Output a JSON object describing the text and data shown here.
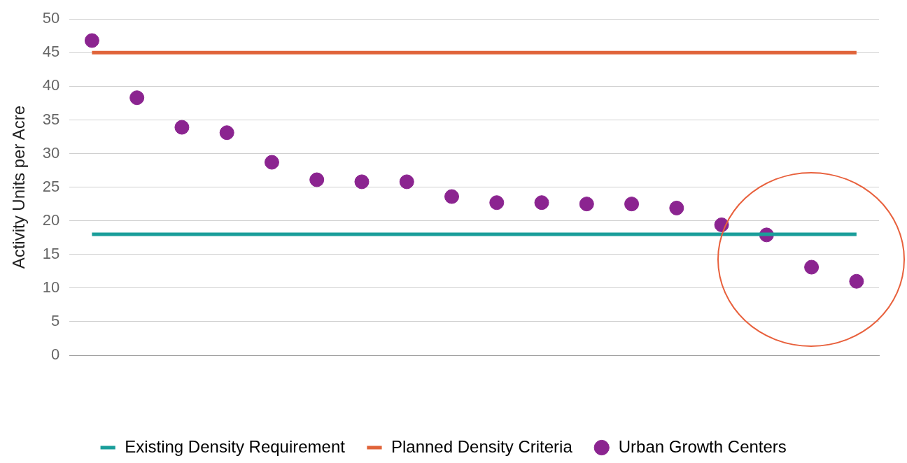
{
  "chart_data": {
    "type": "scatter",
    "ylabel": "Activity Units per Acre",
    "categories": [
      null,
      null,
      null,
      null,
      null,
      null,
      null,
      null,
      null,
      null,
      null,
      null,
      null,
      null,
      null,
      null,
      null,
      null
    ],
    "series": [
      {
        "name": "Existing Density Requirement",
        "type": "line",
        "marker": "none",
        "color": "#1a9e9a",
        "values": [
          18,
          18,
          18,
          18,
          18,
          18,
          18,
          18,
          18,
          18,
          18,
          18,
          18,
          18,
          18,
          18,
          18,
          18
        ]
      },
      {
        "name": "Planned Density Criteria",
        "type": "line",
        "marker": "none",
        "color": "#e0643a",
        "values": [
          45,
          45,
          45,
          45,
          45,
          45,
          45,
          45,
          45,
          45,
          45,
          45,
          45,
          45,
          45,
          45,
          45,
          45
        ]
      },
      {
        "name": "Urban Growth Centers",
        "marker": "circle",
        "color": "#8b2490",
        "values": [
          46.8,
          38.3,
          33.9,
          33.1,
          28.7,
          26.1,
          25.8,
          25.8,
          23.6,
          22.7,
          22.7,
          22.5,
          22.5,
          21.9,
          19.4,
          17.9,
          13.1,
          11.0
        ]
      }
    ],
    "ylim": [
      0,
      50
    ],
    "yticks": [
      0,
      5,
      10,
      15,
      20,
      25,
      30,
      35,
      40,
      45,
      50
    ],
    "grid": "y",
    "legend": "bottom",
    "tick_labels": "y"
  }
}
